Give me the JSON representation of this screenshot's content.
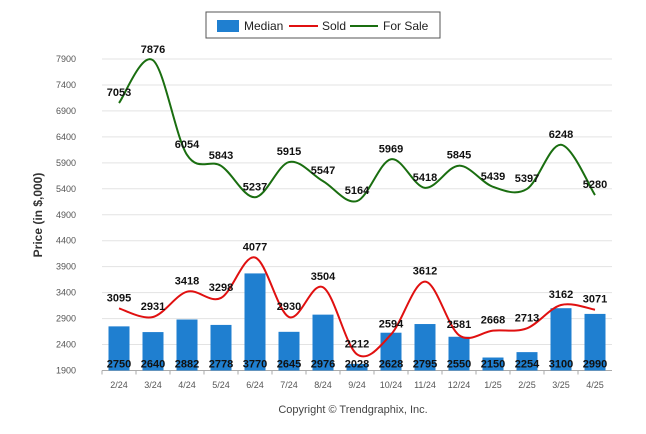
{
  "chart_data": {
    "type": "bar",
    "title": "",
    "xlabel": "",
    "ylabel": "Price (in $,000)",
    "credit": "Copyright © Trendgraphix, Inc.",
    "categories": [
      "2/24",
      "3/24",
      "4/24",
      "5/24",
      "6/24",
      "7/24",
      "8/24",
      "9/24",
      "10/24",
      "11/24",
      "12/24",
      "1/25",
      "2/25",
      "3/25",
      "4/25"
    ],
    "yticks": [
      1900,
      2400,
      2900,
      3400,
      3900,
      4400,
      4900,
      5400,
      5900,
      6400,
      6900,
      7400,
      7900
    ],
    "ylim": [
      1900,
      8100
    ],
    "grid": true,
    "legend_position": "top",
    "series": [
      {
        "name": "Median",
        "type": "bar",
        "color": "#1f7fd0",
        "values": [
          2750,
          2640,
          2882,
          2778,
          3770,
          2645,
          2976,
          2028,
          2628,
          2795,
          2550,
          2150,
          2254,
          3100,
          2990
        ]
      },
      {
        "name": "Sold",
        "type": "line",
        "color": "#e01010",
        "values": [
          3095,
          2931,
          3418,
          3298,
          4077,
          2930,
          3504,
          2212,
          2594,
          3612,
          2581,
          2668,
          2713,
          3162,
          3071
        ]
      },
      {
        "name": "For Sale",
        "type": "line",
        "color": "#1a6e10",
        "values": [
          7053,
          7876,
          6054,
          5843,
          5237,
          5915,
          5547,
          5164,
          5969,
          5418,
          5845,
          5439,
          5397,
          6248,
          5280
        ]
      }
    ]
  }
}
